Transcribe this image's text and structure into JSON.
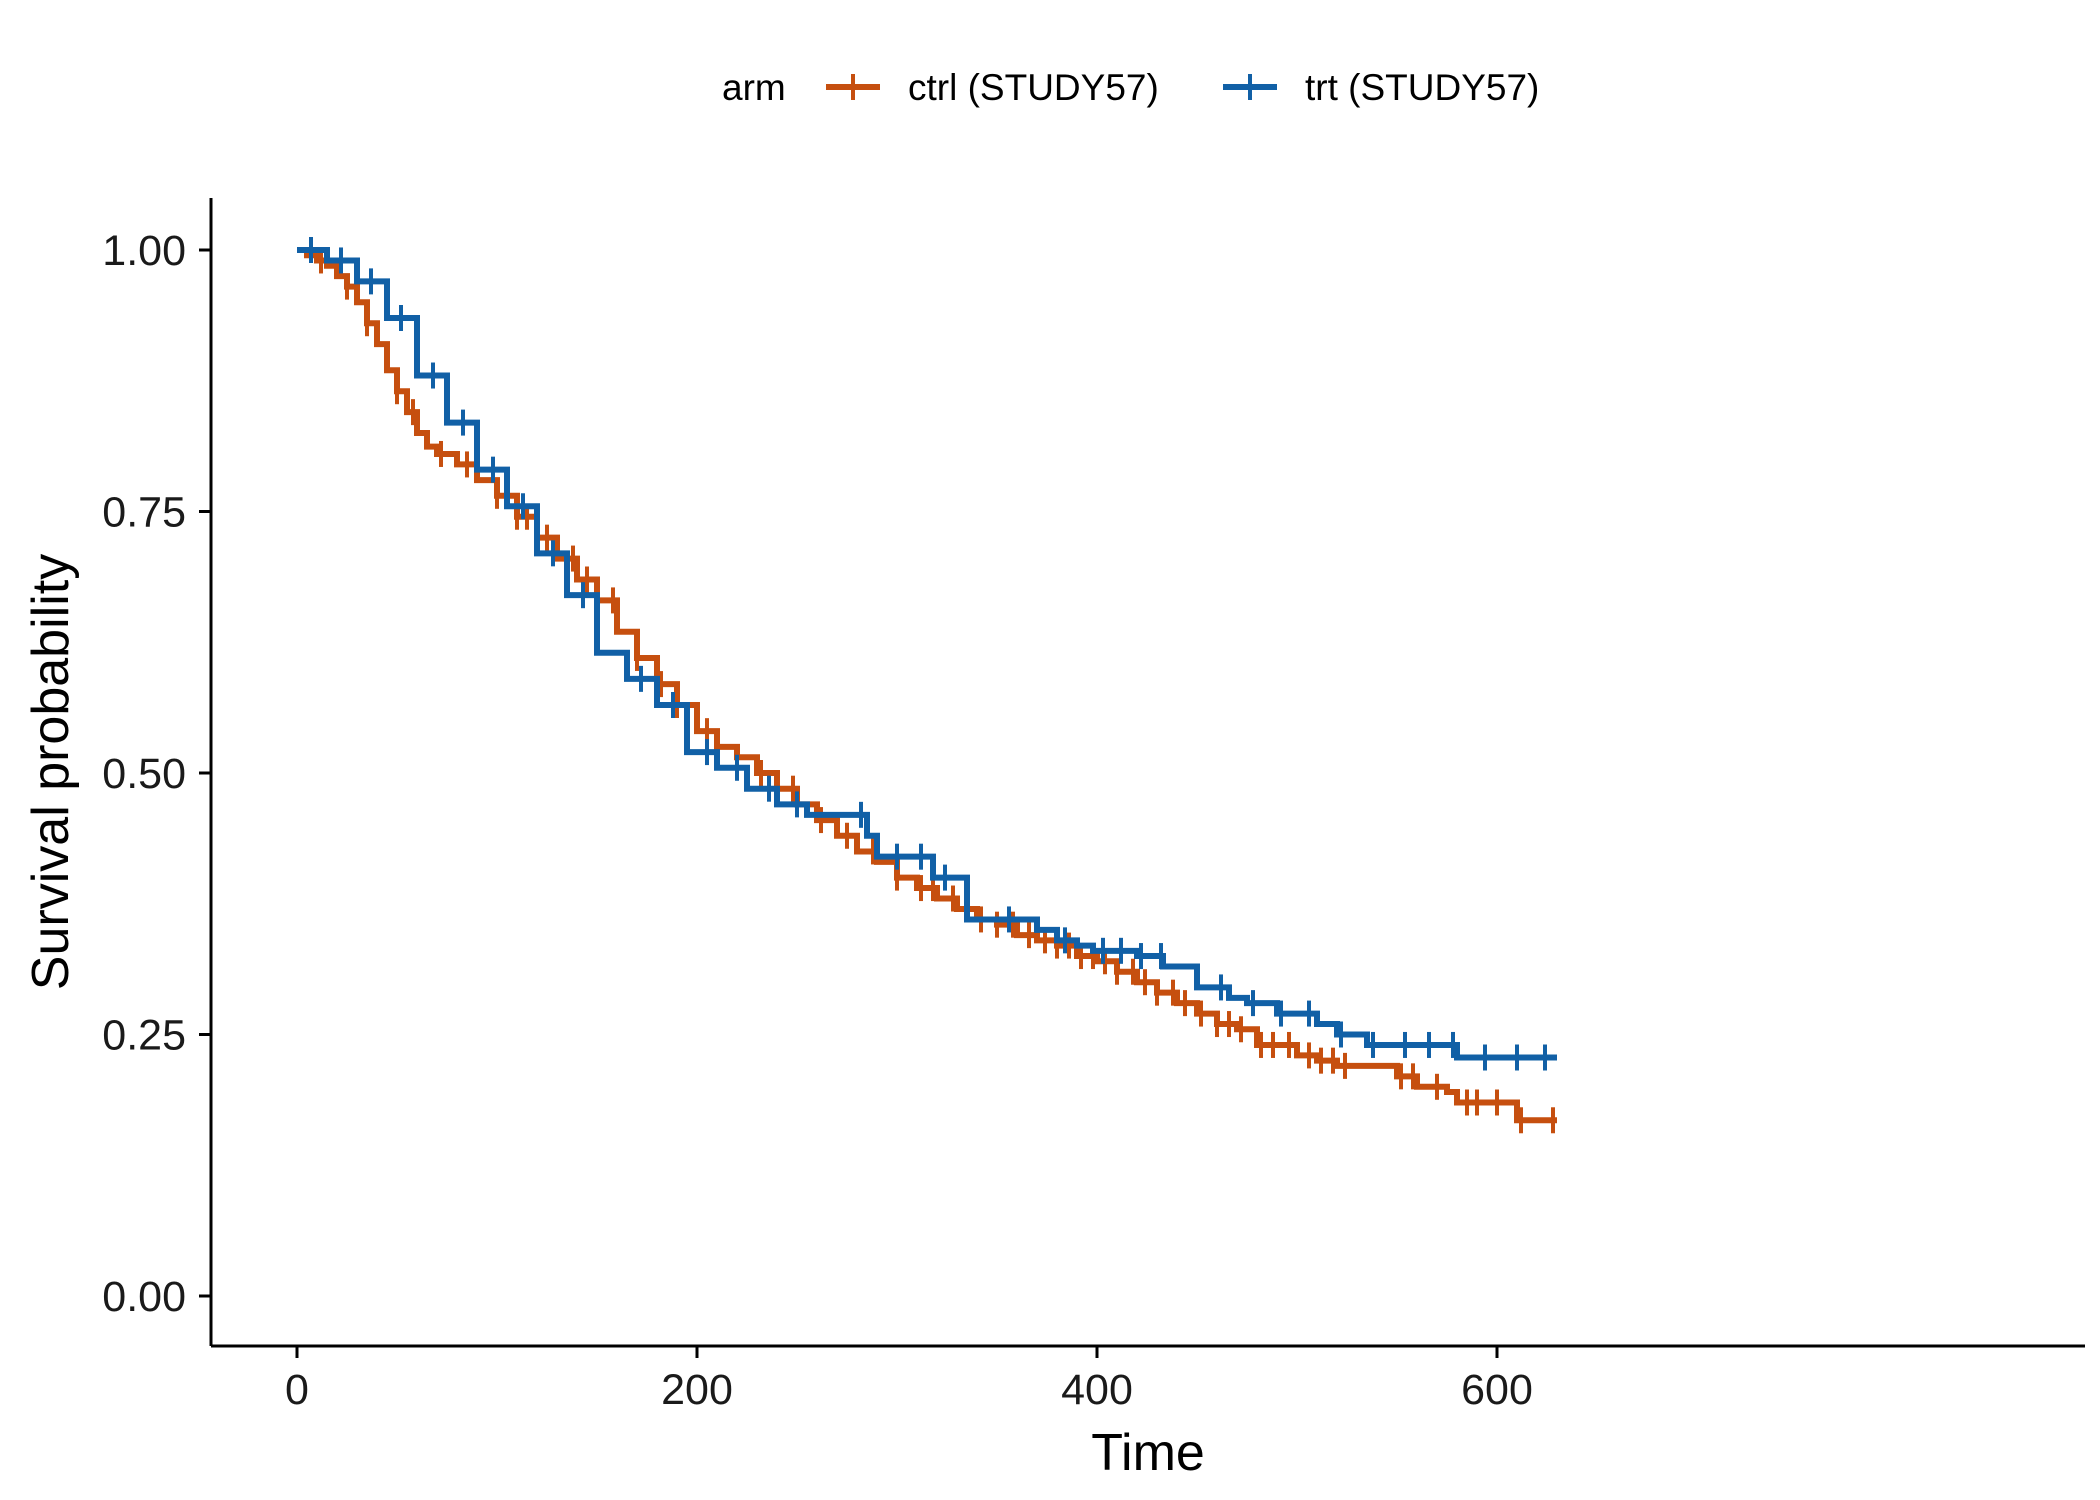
{
  "chart_data": {
    "type": "line",
    "subtype": "kaplan-meier step survival curve",
    "title": "",
    "xlabel": "Time",
    "ylabel": "Survival probability",
    "xlim": [
      -30,
      630
    ],
    "ylim": [
      -0.05,
      1.05
    ],
    "x_ticks": [
      0,
      200,
      400,
      600
    ],
    "x_tick_labels": [
      "0",
      "200",
      "400",
      "600"
    ],
    "y_ticks": [
      0,
      0.25,
      0.5,
      0.75,
      1.0
    ],
    "y_tick_labels": [
      "0.00",
      "0.25",
      "0.50",
      "0.75",
      "1.00"
    ],
    "grid": false,
    "legend": {
      "position": "top",
      "title": "arm",
      "entries": [
        "ctrl (STUDY57)",
        "trt (STUDY57)"
      ]
    },
    "series": [
      {
        "name": "ctrl (STUDY57)",
        "color": "#C64F0F",
        "steps": [
          [
            0,
            1.0
          ],
          [
            5,
            0.995
          ],
          [
            10,
            0.99
          ],
          [
            15,
            0.985
          ],
          [
            20,
            0.975
          ],
          [
            25,
            0.965
          ],
          [
            30,
            0.95
          ],
          [
            35,
            0.93
          ],
          [
            40,
            0.91
          ],
          [
            45,
            0.885
          ],
          [
            50,
            0.865
          ],
          [
            55,
            0.845
          ],
          [
            60,
            0.825
          ],
          [
            65,
            0.812
          ],
          [
            70,
            0.805
          ],
          [
            80,
            0.795
          ],
          [
            90,
            0.78
          ],
          [
            100,
            0.765
          ],
          [
            110,
            0.745
          ],
          [
            120,
            0.725
          ],
          [
            130,
            0.705
          ],
          [
            140,
            0.685
          ],
          [
            150,
            0.665
          ],
          [
            160,
            0.635
          ],
          [
            170,
            0.61
          ],
          [
            180,
            0.585
          ],
          [
            190,
            0.565
          ],
          [
            200,
            0.54
          ],
          [
            210,
            0.525
          ],
          [
            220,
            0.515
          ],
          [
            230,
            0.5
          ],
          [
            240,
            0.485
          ],
          [
            250,
            0.47
          ],
          [
            260,
            0.455
          ],
          [
            270,
            0.44
          ],
          [
            280,
            0.425
          ],
          [
            290,
            0.415
          ],
          [
            300,
            0.4
          ],
          [
            310,
            0.39
          ],
          [
            320,
            0.38
          ],
          [
            330,
            0.37
          ],
          [
            340,
            0.36
          ],
          [
            350,
            0.355
          ],
          [
            360,
            0.345
          ],
          [
            370,
            0.34
          ],
          [
            380,
            0.335
          ],
          [
            390,
            0.325
          ],
          [
            400,
            0.32
          ],
          [
            410,
            0.31
          ],
          [
            420,
            0.3
          ],
          [
            430,
            0.29
          ],
          [
            440,
            0.28
          ],
          [
            450,
            0.27
          ],
          [
            460,
            0.26
          ],
          [
            470,
            0.255
          ],
          [
            480,
            0.24
          ],
          [
            500,
            0.23
          ],
          [
            510,
            0.225
          ],
          [
            520,
            0.22
          ],
          [
            550,
            0.21
          ],
          [
            560,
            0.2
          ],
          [
            575,
            0.195
          ],
          [
            580,
            0.185
          ],
          [
            610,
            0.168
          ],
          [
            630,
            0.168
          ]
        ],
        "censor_times": [
          12,
          25,
          35,
          50,
          58,
          72,
          85,
          100,
          110,
          115,
          125,
          138,
          145,
          158,
          170,
          182,
          190,
          205,
          220,
          232,
          248,
          262,
          275,
          288,
          300,
          312,
          318,
          328,
          335,
          342,
          350,
          358,
          366,
          374,
          380,
          386,
          392,
          398,
          404,
          410,
          418,
          424,
          430,
          438,
          444,
          452,
          460,
          466,
          472,
          482,
          488,
          496,
          506,
          512,
          518,
          524,
          552,
          558,
          570,
          585,
          590,
          600,
          612,
          628
        ]
      },
      {
        "name": "trt (STUDY57)",
        "color": "#1160A6",
        "steps": [
          [
            0,
            1.0
          ],
          [
            15,
            0.99
          ],
          [
            30,
            0.97
          ],
          [
            45,
            0.935
          ],
          [
            60,
            0.88
          ],
          [
            75,
            0.835
          ],
          [
            90,
            0.79
          ],
          [
            105,
            0.755
          ],
          [
            120,
            0.71
          ],
          [
            135,
            0.67
          ],
          [
            150,
            0.615
          ],
          [
            165,
            0.59
          ],
          [
            180,
            0.565
          ],
          [
            195,
            0.52
          ],
          [
            210,
            0.505
          ],
          [
            225,
            0.485
          ],
          [
            240,
            0.47
          ],
          [
            255,
            0.46
          ],
          [
            285,
            0.44
          ],
          [
            290,
            0.42
          ],
          [
            318,
            0.4
          ],
          [
            335,
            0.36
          ],
          [
            370,
            0.35
          ],
          [
            380,
            0.34
          ],
          [
            390,
            0.335
          ],
          [
            398,
            0.33
          ],
          [
            420,
            0.325
          ],
          [
            433,
            0.315
          ],
          [
            450,
            0.295
          ],
          [
            466,
            0.285
          ],
          [
            475,
            0.28
          ],
          [
            490,
            0.27
          ],
          [
            510,
            0.26
          ],
          [
            520,
            0.25
          ],
          [
            535,
            0.24
          ],
          [
            580,
            0.228
          ],
          [
            630,
            0.228
          ]
        ],
        "censor_times": [
          7,
          22,
          37,
          52,
          68,
          83,
          98,
          113,
          128,
          143,
          172,
          188,
          205,
          220,
          236,
          250,
          282,
          300,
          312,
          324,
          356,
          384,
          403,
          412,
          422,
          432,
          462,
          478,
          492,
          506,
          522,
          538,
          554,
          566,
          578,
          594,
          610,
          624
        ]
      }
    ]
  }
}
